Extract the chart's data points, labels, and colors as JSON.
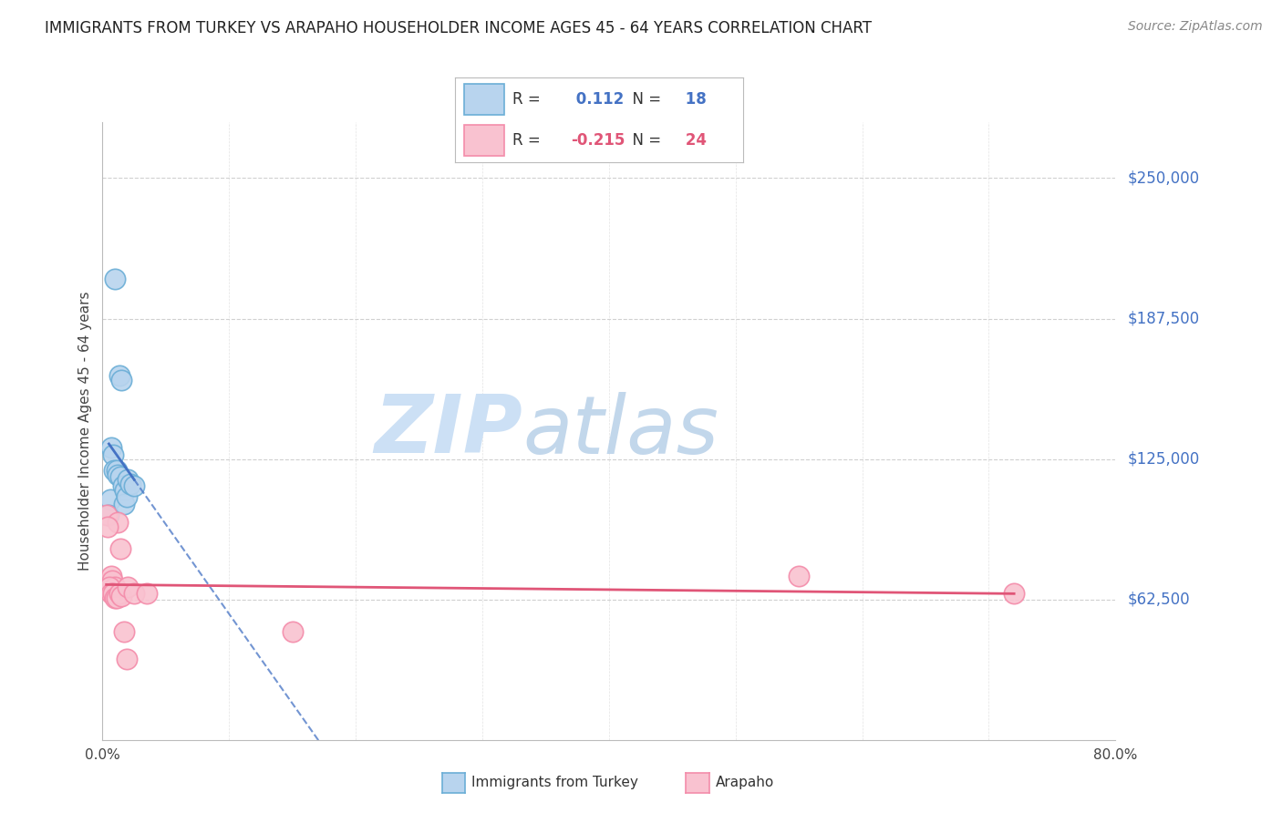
{
  "title": "IMMIGRANTS FROM TURKEY VS ARAPAHO HOUSEHOLDER INCOME AGES 45 - 64 YEARS CORRELATION CHART",
  "source": "Source: ZipAtlas.com",
  "ylabel": "Householder Income Ages 45 - 64 years",
  "xlim": [
    0.0,
    80.0
  ],
  "ylim": [
    0,
    275000
  ],
  "yticks": [
    62500,
    125000,
    187500,
    250000
  ],
  "ytick_labels": [
    "$62,500",
    "$125,000",
    "$187,500",
    "$250,000"
  ],
  "blue_x": [
    1.0,
    1.3,
    1.5,
    0.7,
    0.8,
    0.9,
    1.1,
    1.2,
    1.4,
    0.6,
    1.6,
    1.8,
    2.0,
    0.5,
    1.7,
    1.9,
    2.2,
    2.5
  ],
  "blue_y": [
    205000,
    162000,
    160000,
    130000,
    127000,
    120000,
    120000,
    118000,
    117000,
    107000,
    113000,
    111000,
    116000,
    100000,
    105000,
    108000,
    114000,
    113000
  ],
  "pink_x": [
    0.3,
    0.5,
    0.6,
    0.7,
    0.75,
    1.0,
    1.2,
    1.4,
    0.4,
    0.55,
    0.65,
    0.85,
    0.95,
    1.1,
    1.3,
    1.5,
    2.0,
    2.5,
    1.7,
    1.9,
    3.5,
    15.0,
    55.0,
    72.0
  ],
  "pink_y": [
    100000,
    70000,
    69000,
    73000,
    71000,
    68000,
    97000,
    85000,
    95000,
    68000,
    65000,
    65000,
    63000,
    63000,
    65000,
    64000,
    68000,
    65000,
    48000,
    36000,
    65000,
    48000,
    73000,
    65000
  ],
  "blue_R": 0.112,
  "blue_N": 18,
  "pink_R": -0.215,
  "pink_N": 24,
  "blue_face": "#b8d4ee",
  "blue_edge": "#6baed6",
  "pink_face": "#f9c2d0",
  "pink_edge": "#f48caa",
  "blue_line": "#4472c4",
  "pink_line": "#e05577",
  "bg": "#ffffff",
  "grid_color": "#d0d0d0",
  "title_color": "#222222",
  "source_color": "#888888",
  "ytick_color": "#4472c4",
  "watermark_zip_color": "#c5ddf5",
  "watermark_atlas_color": "#b8cfe8"
}
